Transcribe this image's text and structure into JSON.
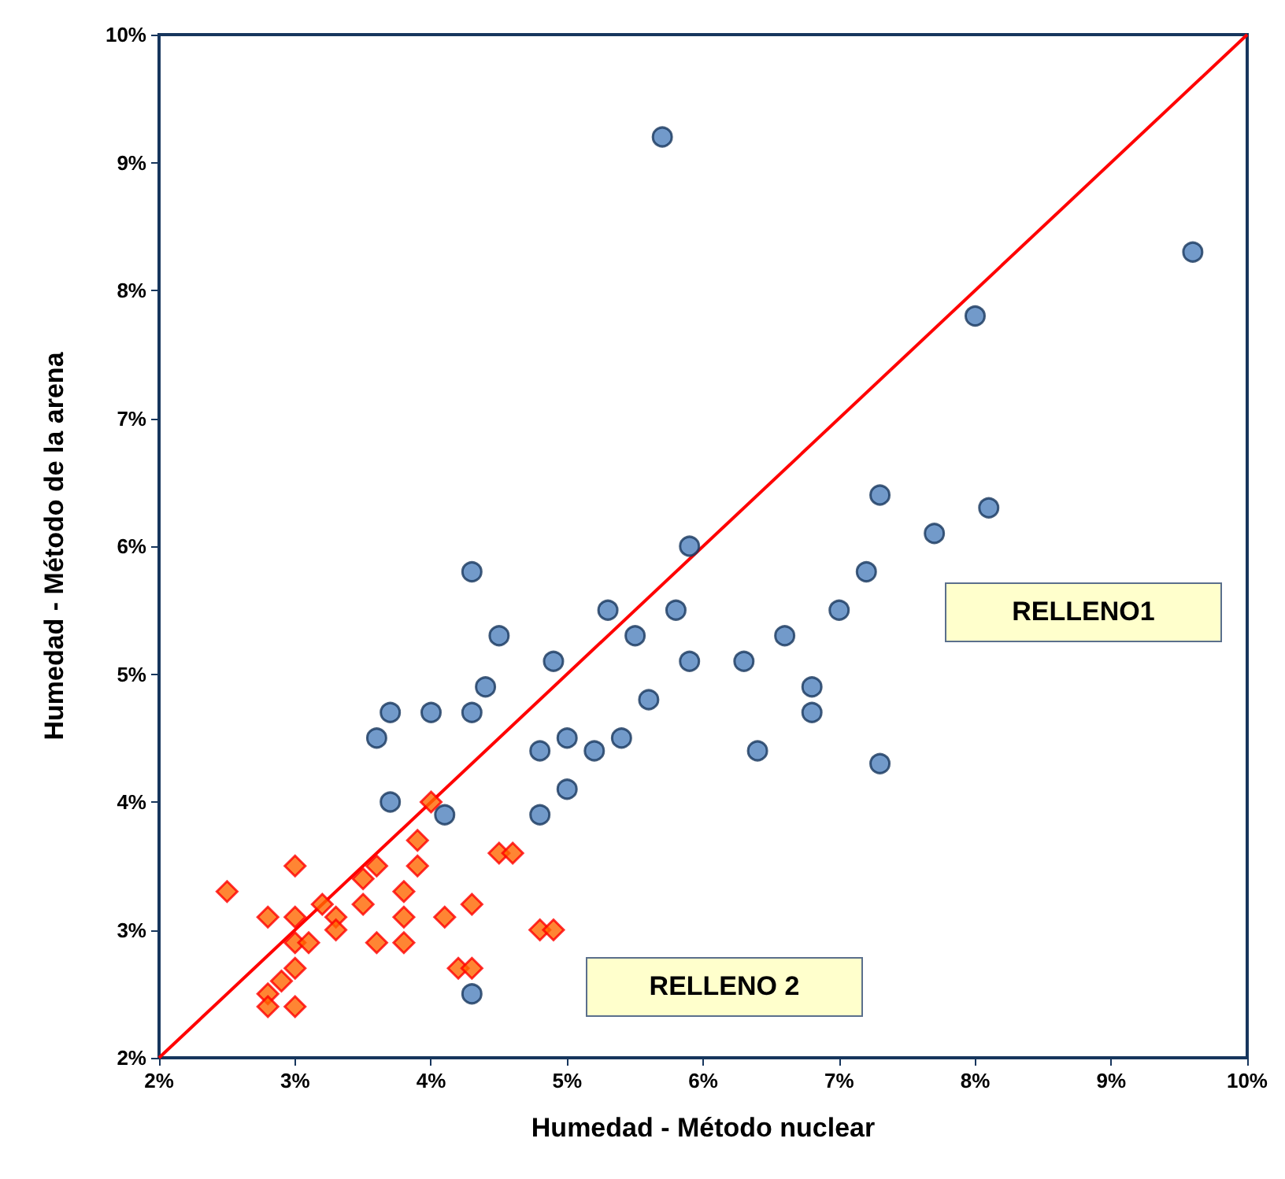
{
  "chart_data": {
    "type": "scatter",
    "xlabel": "Humedad - Método nuclear",
    "ylabel": "Humedad - Método de la arena",
    "xlim": [
      2,
      10
    ],
    "ylim": [
      2,
      10
    ],
    "xticks": [
      {
        "value": 2,
        "label": "2%"
      },
      {
        "value": 3,
        "label": "3%"
      },
      {
        "value": 4,
        "label": "4%"
      },
      {
        "value": 5,
        "label": "5%"
      },
      {
        "value": 6,
        "label": "6%"
      },
      {
        "value": 7,
        "label": "7%"
      },
      {
        "value": 8,
        "label": "8%"
      },
      {
        "value": 9,
        "label": "9%"
      },
      {
        "value": 10,
        "label": "10%"
      }
    ],
    "yticks": [
      {
        "value": 2,
        "label": "2%"
      },
      {
        "value": 3,
        "label": "3%"
      },
      {
        "value": 4,
        "label": "4%"
      },
      {
        "value": 5,
        "label": "5%"
      },
      {
        "value": 6,
        "label": "6%"
      },
      {
        "value": 7,
        "label": "7%"
      },
      {
        "value": 8,
        "label": "8%"
      },
      {
        "value": 9,
        "label": "9%"
      },
      {
        "value": 10,
        "label": "10%"
      }
    ],
    "grid": false,
    "legend": false,
    "series": [
      {
        "name": "RELLENO1",
        "color": "#4f81bd",
        "marker": "circle",
        "x": [
          5.7,
          9.6,
          8.0,
          7.3,
          8.1,
          7.7,
          5.9,
          7.2,
          4.3,
          7.0,
          5.8,
          5.3,
          6.6,
          5.5,
          4.5,
          5.9,
          6.3,
          4.9,
          6.8,
          4.4,
          6.8,
          5.6,
          3.7,
          4.0,
          4.3,
          3.6,
          5.0,
          5.4,
          4.8,
          5.2,
          6.4,
          7.3,
          5.0,
          3.7,
          4.1,
          4.8,
          4.3
        ],
        "values": [
          9.2,
          8.3,
          7.8,
          6.4,
          6.3,
          6.1,
          6.0,
          5.8,
          5.8,
          5.5,
          5.5,
          5.5,
          5.3,
          5.3,
          5.3,
          5.1,
          5.1,
          5.1,
          4.9,
          4.9,
          4.7,
          4.8,
          4.7,
          4.7,
          4.7,
          4.5,
          4.5,
          4.5,
          4.4,
          4.4,
          4.4,
          4.3,
          4.1,
          4.0,
          3.9,
          3.9,
          2.5
        ]
      },
      {
        "name": "RELLENO 2",
        "color": "#ff6600",
        "marker": "diamond",
        "x": [
          2.5,
          2.8,
          3.0,
          3.0,
          3.0,
          3.1,
          3.2,
          3.3,
          3.3,
          3.5,
          3.6,
          3.5,
          3.6,
          3.8,
          3.8,
          3.8,
          3.9,
          3.9,
          4.0,
          4.1,
          4.3,
          4.2,
          4.3,
          4.5,
          4.6,
          4.8,
          4.9,
          3.0,
          2.9,
          2.8,
          2.8,
          3.0
        ],
        "values": [
          3.3,
          3.1,
          3.5,
          3.1,
          2.9,
          2.9,
          3.2,
          3.1,
          3.0,
          3.4,
          3.5,
          3.2,
          2.9,
          3.3,
          3.1,
          2.9,
          3.7,
          3.5,
          4.0,
          3.1,
          3.2,
          2.7,
          2.7,
          3.6,
          3.6,
          3.0,
          3.0,
          2.7,
          2.6,
          2.5,
          2.4,
          2.4
        ]
      },
      {
        "type": "line",
        "color": "#ff0000",
        "marker": "none",
        "line_style": "solid",
        "x": [
          2,
          10
        ],
        "values": [
          2,
          10
        ]
      }
    ]
  }
}
